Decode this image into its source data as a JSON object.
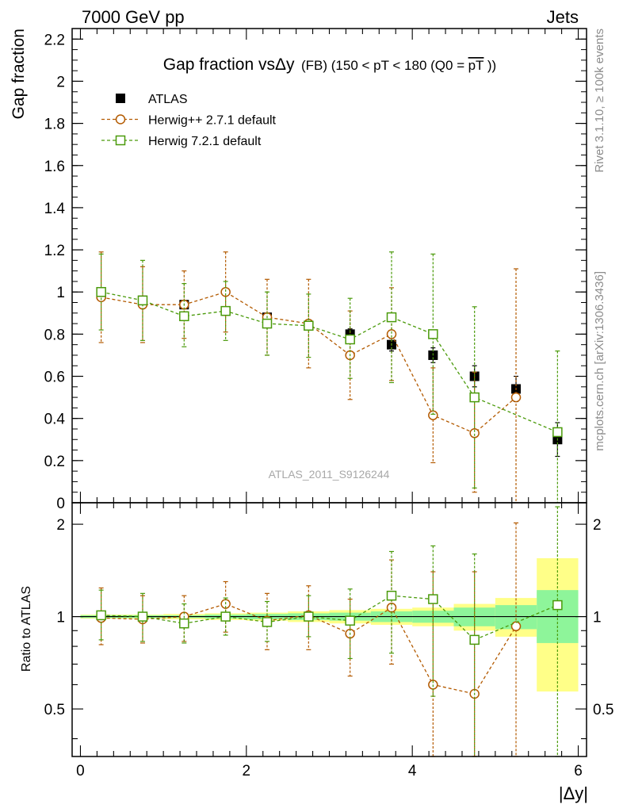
{
  "header": {
    "left": "7000 GeV pp",
    "right": "Jets"
  },
  "side_texts": {
    "rivet": "Rivet 3.1.10, ≥ 100k events",
    "mcplots": "mcplots.cern.ch [arXiv:1306.3436]"
  },
  "watermark": "ATLAS_2011_S9126244",
  "chart_data": {
    "type": "scatter",
    "title": "Gap fraction vsΔy",
    "title_suffix": "(FB) (150 < pT < 180 (Q0 =",
    "title_overline": "pT",
    "title_close": "))",
    "xlabel": "|Δy|",
    "ylabel": "Gap fraction",
    "ratio_ylabel": "Ratio to ATLAS",
    "xlim": [
      -0.1,
      6.1
    ],
    "ylim": [
      0,
      2.25
    ],
    "ratio_ylim": [
      0.35,
      2.35
    ],
    "ratio_log": true,
    "legend_position": "top-left",
    "x_ticks": [
      "0",
      "2",
      "4",
      "6"
    ],
    "y_ticks": [
      "0",
      "0.2",
      "0.4",
      "0.6",
      "0.8",
      "1",
      "1.2",
      "1.4",
      "1.6",
      "1.8",
      "2",
      "2.2"
    ],
    "ratio_ticks": [
      "0.5",
      "1",
      "2"
    ],
    "bin_edges": [
      0,
      0.5,
      1,
      1.5,
      2,
      2.5,
      3,
      3.5,
      4,
      4.5,
      5,
      5.5,
      6
    ],
    "series": [
      {
        "name": "ATLAS",
        "color": "#000000",
        "marker": "filled-square",
        "x": [
          0.25,
          0.75,
          1.25,
          1.75,
          2.25,
          2.75,
          3.25,
          3.75,
          4.25,
          4.75,
          5.25,
          5.75
        ],
        "y": [
          0.99,
          0.96,
          0.94,
          0.91,
          0.88,
          0.84,
          0.8,
          0.75,
          0.7,
          0.6,
          0.54,
          0.3
        ],
        "yerr": [
          0.008,
          0.01,
          0.012,
          0.015,
          0.018,
          0.02,
          0.025,
          0.03,
          0.035,
          0.05,
          0.06,
          0.08
        ]
      },
      {
        "name": "Herwig++ 2.7.1 default",
        "color": "#b35a00",
        "marker": "open-circle",
        "x": [
          0.25,
          0.75,
          1.25,
          1.75,
          2.25,
          2.75,
          3.25,
          3.75,
          4.25,
          4.75,
          5.25
        ],
        "y": [
          0.975,
          0.94,
          0.94,
          1.0,
          0.88,
          0.85,
          0.7,
          0.8,
          0.415,
          0.33,
          0.5
        ],
        "ylow": [
          0.76,
          0.76,
          0.78,
          0.81,
          0.7,
          0.64,
          0.49,
          0.58,
          0.19,
          0.05,
          0.0
        ],
        "yhigh": [
          1.19,
          1.12,
          1.1,
          1.19,
          1.06,
          1.06,
          0.91,
          1.02,
          0.64,
          0.62,
          1.11
        ],
        "ratio": [
          0.99,
          0.98,
          1.0,
          1.1,
          0.97,
          1.01,
          0.88,
          1.07,
          0.6,
          0.56,
          0.93
        ],
        "ratio_low": [
          0.81,
          0.82,
          0.83,
          0.89,
          0.78,
          0.78,
          0.64,
          0.7,
          0.3,
          0.2,
          0.2
        ],
        "ratio_high": [
          1.24,
          1.17,
          1.17,
          1.3,
          1.19,
          1.26,
          1.14,
          1.53,
          1.4,
          1.4,
          2.02
        ]
      },
      {
        "name": "Herwig 7.2.1 default",
        "color": "#4a9a0a",
        "marker": "open-square",
        "x": [
          0.25,
          0.75,
          1.25,
          1.75,
          2.25,
          2.75,
          3.25,
          3.75,
          4.25,
          4.75,
          5.75
        ],
        "y": [
          1.0,
          0.96,
          0.885,
          0.91,
          0.85,
          0.84,
          0.775,
          0.88,
          0.8,
          0.5,
          0.335
        ],
        "ylow": [
          0.82,
          0.77,
          0.74,
          0.77,
          0.7,
          0.69,
          0.59,
          0.57,
          0.42,
          0.07,
          0.0
        ],
        "yhigh": [
          1.18,
          1.15,
          1.04,
          1.05,
          1.0,
          0.99,
          0.97,
          1.19,
          1.18,
          0.93,
          0.72
        ],
        "ratio": [
          1.01,
          1.0,
          0.95,
          1.0,
          0.96,
          1.0,
          0.97,
          1.17,
          1.14,
          0.84,
          1.09
        ],
        "ratio_low": [
          0.84,
          0.83,
          0.82,
          0.87,
          0.83,
          0.86,
          0.73,
          0.76,
          0.55,
          0.22,
          0.22
        ],
        "ratio_high": [
          1.22,
          1.19,
          1.1,
          1.15,
          1.12,
          1.17,
          1.23,
          1.63,
          1.7,
          1.6,
          2.28
        ]
      }
    ],
    "ratio_bands": {
      "inner_color": "#8ef59a",
      "outer_color": "#ffff88",
      "inner_low": [
        0.99,
        0.99,
        0.99,
        0.985,
        0.98,
        0.975,
        0.97,
        0.96,
        0.955,
        0.93,
        0.91,
        0.82
      ],
      "inner_high": [
        1.01,
        1.01,
        1.01,
        1.015,
        1.02,
        1.025,
        1.03,
        1.04,
        1.045,
        1.07,
        1.09,
        1.22
      ],
      "outer_low": [
        0.985,
        0.985,
        0.98,
        0.975,
        0.97,
        0.96,
        0.95,
        0.94,
        0.93,
        0.9,
        0.86,
        0.57
      ],
      "outer_high": [
        1.015,
        1.015,
        1.02,
        1.025,
        1.03,
        1.04,
        1.05,
        1.06,
        1.07,
        1.1,
        1.15,
        1.55
      ]
    }
  }
}
